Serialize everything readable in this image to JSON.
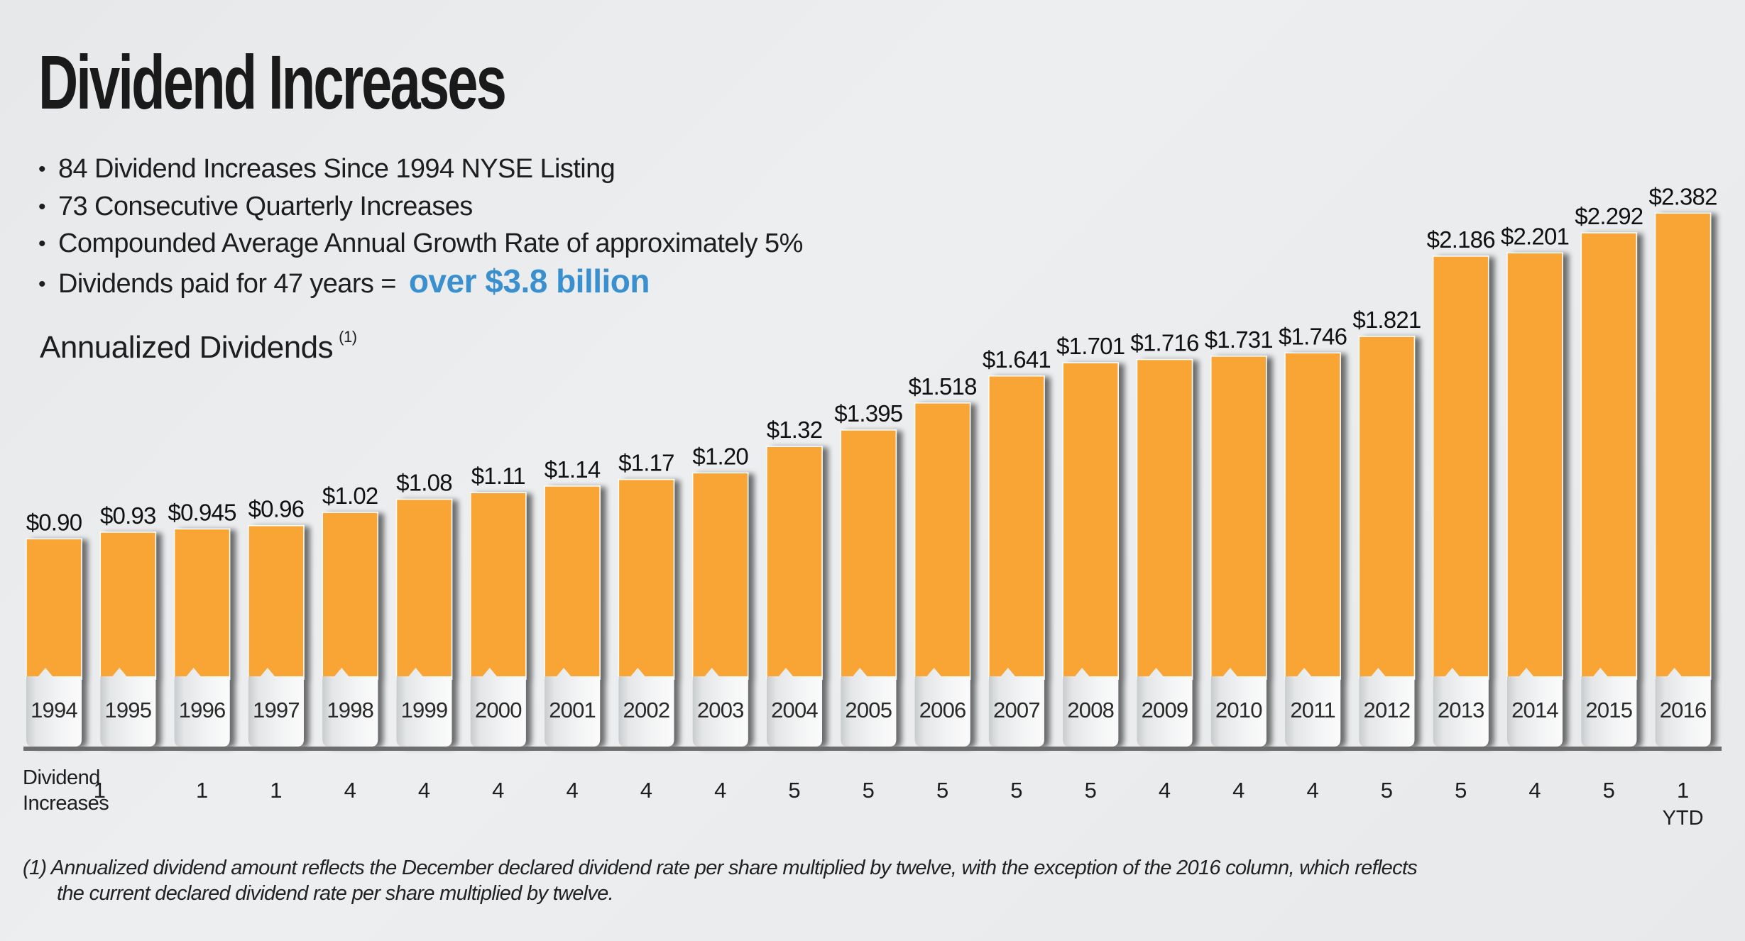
{
  "page": {
    "title": "Dividend Increases",
    "bullets": [
      {
        "text": "84 Dividend Increases Since 1994 NYSE Listing"
      },
      {
        "text": "73 Consecutive Quarterly Increases"
      },
      {
        "text": "Compounded Average Annual Growth Rate of approximately 5%"
      },
      {
        "text": "Dividends paid for 47 years =",
        "highlight": "over $3.8 billion"
      }
    ],
    "bullet_glyph": "•",
    "subtitle": "Annualized Dividends",
    "subtitle_note": "(1)",
    "increases_label_line1": "Dividend",
    "increases_label_line2": "Increases",
    "footnote_line1": "(1) Annualized dividend amount reflects the December declared dividend rate per share multiplied by twelve, with the exception of the 2016 column, which reflects",
    "footnote_line2": "the current declared dividend rate per share multiplied by twelve.",
    "colors": {
      "bar": "#f9a535",
      "highlight": "#3a8fcf",
      "axis": "#6d6d6d",
      "tab": "#eef0f1"
    }
  },
  "chart_data": {
    "type": "bar",
    "title": "Annualized Dividends",
    "xlabel": "",
    "ylabel": "",
    "grid": false,
    "ylim": [
      0,
      2.5
    ],
    "categories": [
      "1994",
      "1995",
      "1996",
      "1997",
      "1998",
      "1999",
      "2000",
      "2001",
      "2002",
      "2003",
      "2004",
      "2005",
      "2006",
      "2007",
      "2008",
      "2009",
      "2010",
      "2011",
      "2012",
      "2013",
      "2014",
      "2015",
      "2016"
    ],
    "values": [
      0.9,
      0.93,
      0.945,
      0.96,
      1.02,
      1.08,
      1.11,
      1.14,
      1.17,
      1.2,
      1.32,
      1.395,
      1.518,
      1.641,
      1.701,
      1.716,
      1.731,
      1.746,
      1.821,
      2.186,
      2.201,
      2.292,
      2.382
    ],
    "value_labels": [
      "$0.90",
      "$0.93",
      "$0.945",
      "$0.96",
      "$1.02",
      "$1.08",
      "$1.11",
      "$1.14",
      "$1.17",
      "$1.20",
      "$1.32",
      "$1.395",
      "$1.518",
      "$1.641",
      "$1.701",
      "$1.716",
      "$1.731",
      "$1.746",
      "$1.821",
      "$2.186",
      "$2.201",
      "$2.292",
      "$2.382"
    ],
    "dividend_increases": [
      "1",
      "1",
      "1",
      "4",
      "4",
      "4",
      "4",
      "4",
      "4",
      "5",
      "5",
      "5",
      "5",
      "5",
      "4",
      "4",
      "4",
      "5",
      "5",
      "4",
      "5",
      "1"
    ],
    "dividend_increases_note": {
      "2016": "YTD"
    },
    "increases_by_year": {
      "1995": "1",
      "1996": "1",
      "1997": "1",
      "1998": "4",
      "1999": "4",
      "2000": "4",
      "2001": "4",
      "2002": "4",
      "2003": "4",
      "2004": "5",
      "2005": "5",
      "2006": "5",
      "2007": "5",
      "2008": "5",
      "2009": "4",
      "2010": "4",
      "2011": "4",
      "2012": "5",
      "2013": "5",
      "2014": "4",
      "2015": "5",
      "2016": "1"
    }
  }
}
